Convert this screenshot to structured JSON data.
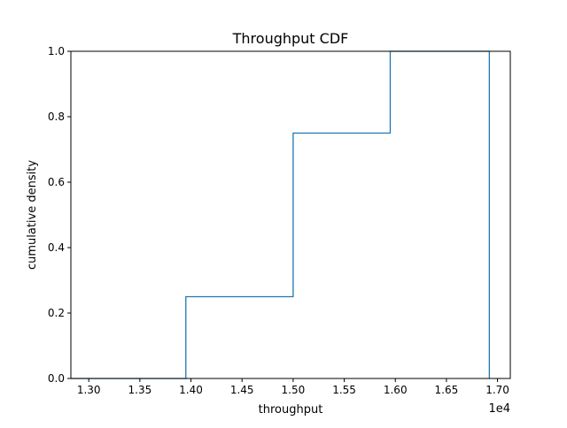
{
  "chart_data": {
    "type": "line",
    "step": "post",
    "title": "Throughput CDF",
    "xlabel": "throughput",
    "ylabel": "cumulative density",
    "x_offset_text": "1e4",
    "xlim": [
      1.2825,
      1.7125
    ],
    "ylim": [
      0.0,
      1.0
    ],
    "x_ticks": [
      {
        "value": 1.3,
        "label": "1.30"
      },
      {
        "value": 1.35,
        "label": "1.35"
      },
      {
        "value": 1.4,
        "label": "1.40"
      },
      {
        "value": 1.45,
        "label": "1.45"
      },
      {
        "value": 1.5,
        "label": "1.50"
      },
      {
        "value": 1.55,
        "label": "1.55"
      },
      {
        "value": 1.6,
        "label": "1.60"
      },
      {
        "value": 1.65,
        "label": "1.65"
      },
      {
        "value": 1.7,
        "label": "1.70"
      }
    ],
    "y_ticks": [
      {
        "value": 0.0,
        "label": "0.0"
      },
      {
        "value": 0.2,
        "label": "0.2"
      },
      {
        "value": 0.4,
        "label": "0.4"
      },
      {
        "value": 0.6,
        "label": "0.6"
      },
      {
        "value": 0.8,
        "label": "0.8"
      },
      {
        "value": 1.0,
        "label": "1.0"
      }
    ],
    "series": [
      {
        "color": "#1f77b4",
        "x": [
          1.2825,
          1.395,
          1.5,
          1.595,
          1.692
        ],
        "y": [
          0.0,
          0.25,
          0.75,
          1.0,
          0.0
        ]
      }
    ],
    "grid": false,
    "legend": "none"
  }
}
